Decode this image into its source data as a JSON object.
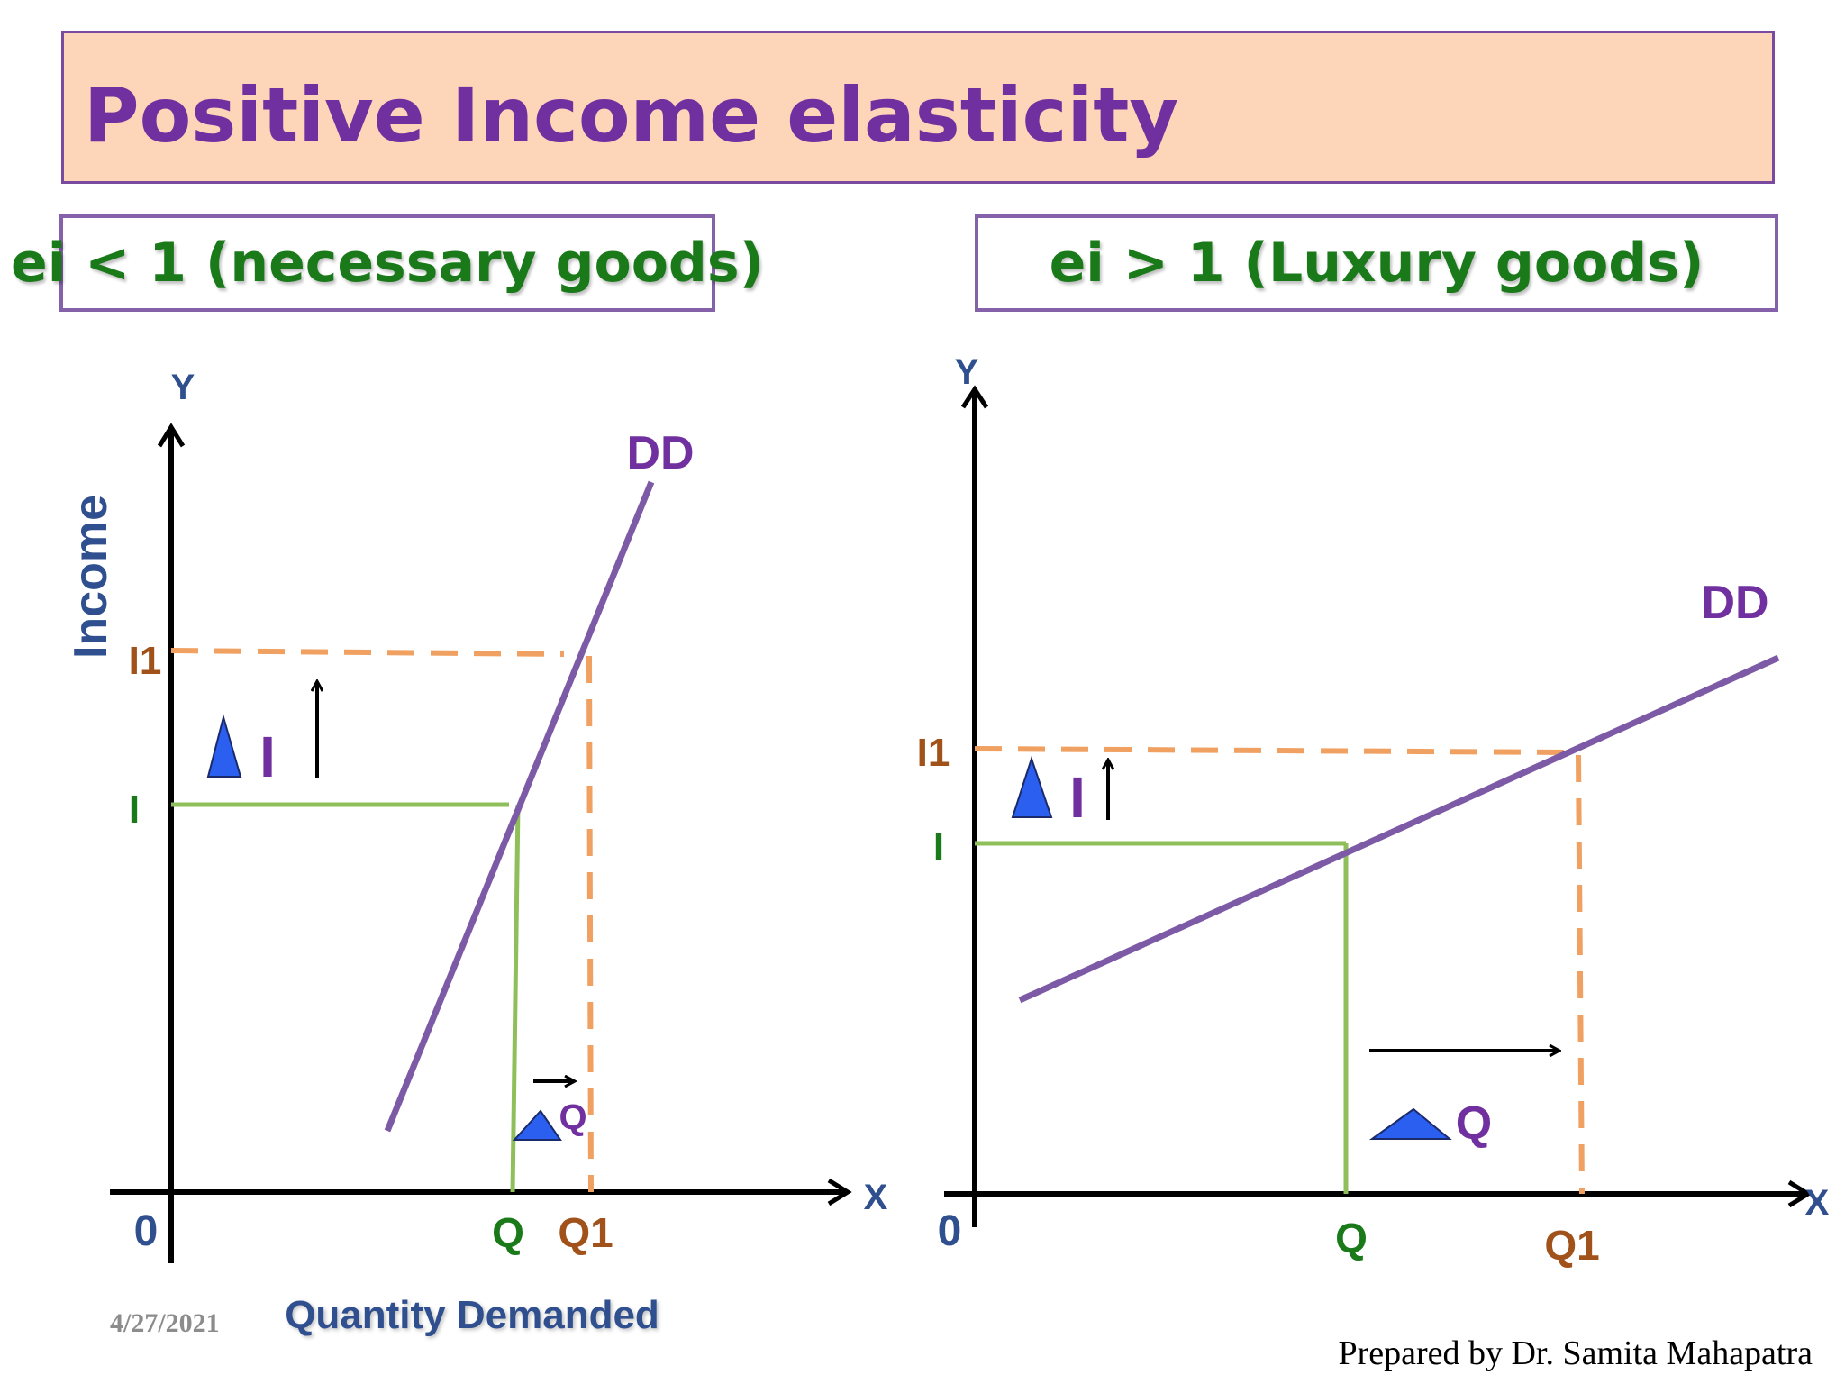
{
  "title": "Positive Income elasticity",
  "left_panel": {
    "heading": "ei < 1 (necessary goods)",
    "y_axis_label": "Y",
    "x_axis_label": "X",
    "origin_label": "0",
    "y_title": "Income",
    "x_title": "Quantity Demanded",
    "curve_label": "DD",
    "income_labels": [
      "I",
      "I1"
    ],
    "quantity_labels": [
      "Q",
      "Q1"
    ],
    "delta_income_label": "I",
    "delta_quantity_label": "Q"
  },
  "right_panel": {
    "heading": "ei > 1 (Luxury goods)",
    "y_axis_label": "Y",
    "x_axis_label": "X",
    "origin_label": "0",
    "curve_label": "DD",
    "income_labels": [
      "I",
      "I1"
    ],
    "quantity_labels": [
      "Q",
      "Q1"
    ],
    "delta_income_label": "I",
    "delta_quantity_label": "Q"
  },
  "footer": {
    "date": "4/27/2021",
    "credit": "Prepared by Dr. Samita Mahapatra"
  },
  "colors": {
    "title_bg": "#fdd5b8",
    "title_text": "#7030a0",
    "heading_text": "#1a7a1a",
    "curve": "#7d5aa6",
    "initial_lines": "#8fbf5a",
    "new_lines": "#f0a060",
    "axis_label": "#2f4f8f",
    "triangle": "#2b5ff0"
  }
}
